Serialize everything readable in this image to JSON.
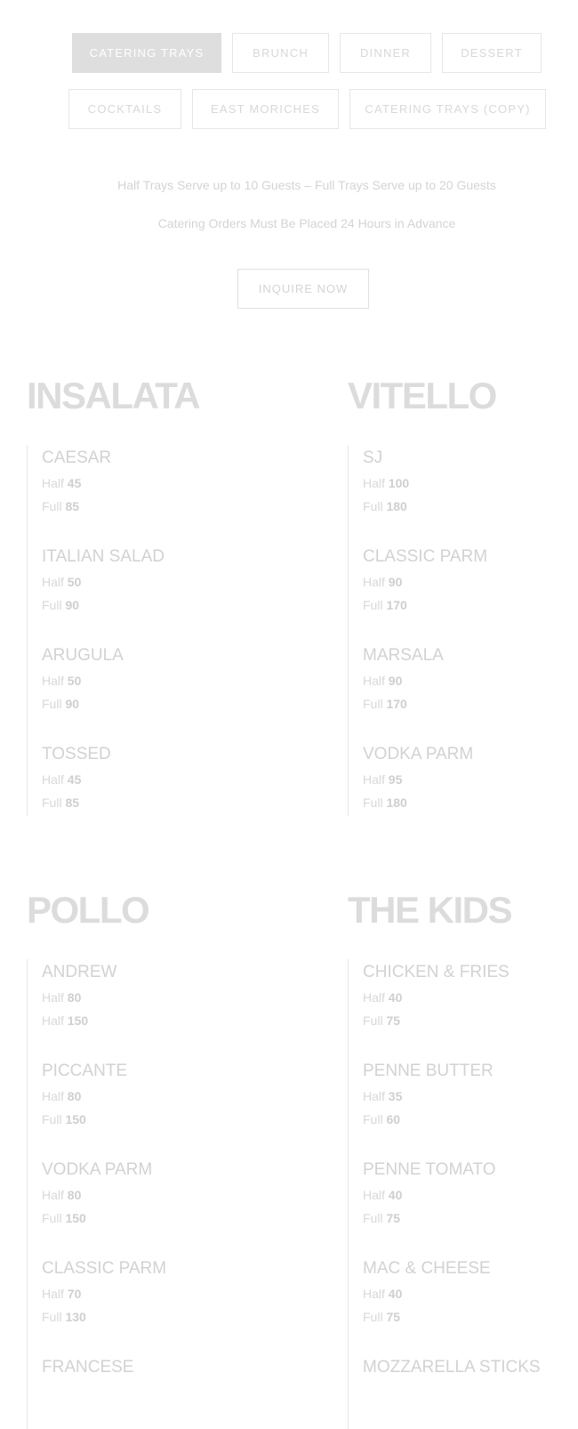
{
  "tabs": [
    {
      "label": "CATERING TRAYS",
      "active": true
    },
    {
      "label": "BRUNCH"
    },
    {
      "label": "DINNER"
    },
    {
      "label": "DESSERT"
    },
    {
      "label": "COCKTAILS"
    },
    {
      "label": "EAST MORICHES"
    },
    {
      "label": "CATERING TRAYS (COPY)"
    }
  ],
  "info": {
    "line1": "Half Trays Serve up to 10 Guests  –  Full Trays Serve up to 20 Guests",
    "line2": "Catering Orders Must Be Placed 24 Hours in Advance"
  },
  "inquire_label": "INQUIRE NOW",
  "sections": [
    {
      "title": "INSALATA",
      "items": [
        {
          "name": "CAESAR",
          "p1": [
            "Half",
            "45"
          ],
          "p2": [
            "Full",
            "85"
          ]
        },
        {
          "name": "ITALIAN SALAD",
          "p1": [
            "Half",
            "50"
          ],
          "p2": [
            "Full",
            "90"
          ]
        },
        {
          "name": "ARUGULA",
          "p1": [
            "Half",
            "50"
          ],
          "p2": [
            "Full",
            "90"
          ]
        },
        {
          "name": "TOSSED",
          "p1": [
            "Half",
            "45"
          ],
          "p2": [
            "Full",
            "85"
          ]
        }
      ]
    },
    {
      "title": "VITELLO",
      "items": [
        {
          "name": "SJ",
          "p1": [
            "Half",
            "100"
          ],
          "p2": [
            "Full",
            "180"
          ]
        },
        {
          "name": "CLASSIC PARM",
          "p1": [
            "Half",
            "90"
          ],
          "p2": [
            "Full",
            "170"
          ]
        },
        {
          "name": "MARSALA",
          "p1": [
            "Half",
            "90"
          ],
          "p2": [
            "Full",
            "170"
          ]
        },
        {
          "name": "VODKA PARM",
          "p1": [
            "Half",
            "95"
          ],
          "p2": [
            "Full",
            "180"
          ]
        }
      ]
    },
    {
      "title": "POLLO",
      "items": [
        {
          "name": "ANDREW",
          "p1": [
            "Half",
            "80"
          ],
          "p2": [
            "Half",
            "150"
          ]
        },
        {
          "name": "PICCANTE",
          "p1": [
            "Half",
            "80"
          ],
          "p2": [
            "Full",
            "150"
          ]
        },
        {
          "name": "VODKA PARM",
          "p1": [
            "Half",
            "80"
          ],
          "p2": [
            "Full",
            "150"
          ]
        },
        {
          "name": "CLASSIC PARM",
          "p1": [
            "Half",
            "70"
          ],
          "p2": [
            "Full",
            "130"
          ]
        },
        {
          "name": "FRANCESE"
        }
      ]
    },
    {
      "title": "THE KIDS",
      "items": [
        {
          "name": "CHICKEN & FRIES",
          "p1": [
            "Half",
            "40"
          ],
          "p2": [
            "Full",
            "75"
          ]
        },
        {
          "name": "PENNE BUTTER",
          "p1": [
            "Half",
            "35"
          ],
          "p2": [
            "Full",
            "60"
          ]
        },
        {
          "name": "PENNE TOMATO",
          "p1": [
            "Half",
            "40"
          ],
          "p2": [
            "Full",
            "75"
          ]
        },
        {
          "name": "MAC & CHEESE",
          "p1": [
            "Half",
            "40"
          ],
          "p2": [
            "Full",
            "75"
          ]
        },
        {
          "name": "MOZZARELLA STICKS"
        }
      ]
    }
  ]
}
